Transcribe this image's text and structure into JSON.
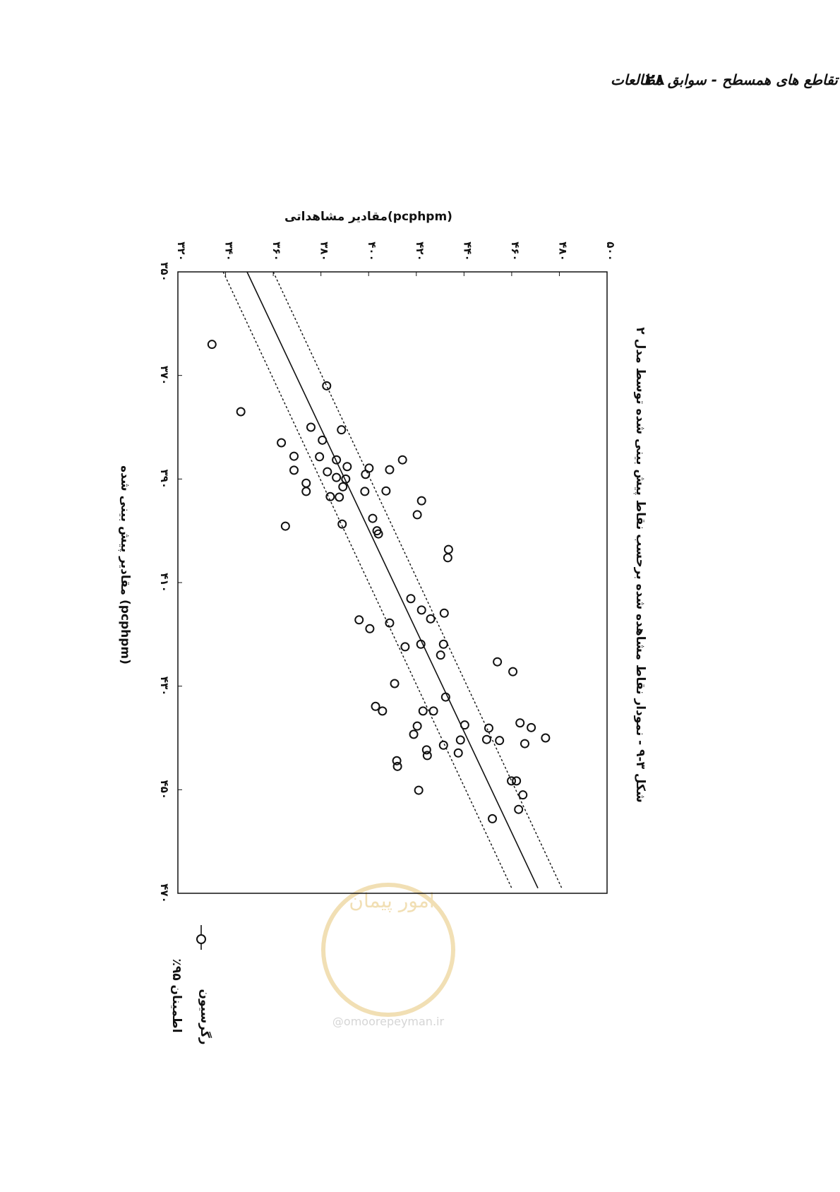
{
  "header": {
    "page_number": "۲۸",
    "title": "تقاطع های همسطح - سوابق مطالعات"
  },
  "watermark": {
    "logo_text": "امور پیمان",
    "text": "@omoorepeyman.ir"
  },
  "chart_data": {
    "type": "scatter",
    "title": "شکل ۳-۹ - نمودار نقاط مشاهده شده برحسب نقاط پیش بینی شده توسط مدل ۲",
    "x_label": "مقادیر پیش بینی شده (pcphpm)",
    "y_label": "مقادیر مشاهداتی(pcphpm)",
    "xlim": [
      350,
      470
    ],
    "xticks": [
      {
        "value": 350,
        "label": "۳۵۰"
      },
      {
        "value": 370,
        "label": "۳۷۰"
      },
      {
        "value": 390,
        "label": "۳۹۰"
      },
      {
        "value": 410,
        "label": "۴۱۰"
      },
      {
        "value": 430,
        "label": "۴۳۰"
      },
      {
        "value": 450,
        "label": "۴۵۰"
      },
      {
        "value": 470,
        "label": "۴۷۰"
      }
    ],
    "ylim": [
      320,
      500
    ],
    "yticks": [
      {
        "value": 320,
        "label": "۳۲۰"
      },
      {
        "value": 340,
        "label": "۳۴۰"
      },
      {
        "value": 360,
        "label": "۳۶۰"
      },
      {
        "value": 380,
        "label": "۳۸۰"
      },
      {
        "value": 400,
        "label": "۴۰۰"
      },
      {
        "value": 420,
        "label": "۴۲۰"
      },
      {
        "value": 440,
        "label": "۴۴۰"
      },
      {
        "value": 460,
        "label": "۴۶۰"
      },
      {
        "value": 480,
        "label": "۴۸۰"
      },
      {
        "value": 500,
        "label": "۵۰۰"
      }
    ],
    "points": {
      "color": "#111111",
      "x": [
        364,
        377,
        372,
        380,
        380.5,
        382.5,
        383,
        385.6,
        385.7,
        386.3,
        388.3,
        388.6,
        387.9,
        387.6,
        388.2,
        386.3,
        389.7,
        390,
        389.1,
        390.8,
        392.4,
        391.5,
        392.4,
        392.3,
        393.4,
        393.5,
        394.2,
        397.6,
        396.9,
        399.1,
        398.7,
        400,
        400.6,
        403.6,
        405.2,
        413.1,
        415.3,
        415.9,
        417,
        417.2,
        417.8,
        418.9,
        422.4,
        421.9,
        421.9,
        424,
        425.3,
        427.2,
        429.5,
        432.1,
        433.9,
        434.8,
        434.8,
        434.8,
        437.5,
        437.7,
        439.3,
        438.1,
        437.1,
        438,
        440.3,
        440.5,
        441.1,
        440,
        440.4,
        441.4,
        442.3,
        443.4,
        442.9,
        444.4,
        445.5,
        448.3,
        448.3,
        451,
        450.1,
        453.8,
        455.6
      ],
      "values": [
        334.3,
        346.4,
        382.4,
        375.8,
        388.6,
        380.6,
        363.4,
        368.7,
        379.4,
        386.5,
        368.7,
        382.7,
        400.2,
        391,
        408.8,
        414.2,
        386.5,
        390.4,
        398.7,
        373.8,
        373.8,
        389.2,
        398.4,
        407.3,
        383.9,
        387.7,
        422.2,
        401.7,
        420.4,
        365.1,
        388.9,
        403.5,
        404.1,
        433.5,
        433.2,
        417.7,
        422.2,
        431.7,
        426,
        396,
        408.8,
        400.5,
        415.3,
        421.9,
        431.4,
        430.2,
        454,
        460.5,
        410.9,
        432.3,
        402.9,
        405.8,
        422.8,
        427.2,
        440.3,
        420.4,
        418.9,
        450.4,
        463.5,
        468.2,
        449.5,
        454.9,
        465.5,
        474.2,
        438.5,
        431.4,
        424.3,
        424.6,
        437.6,
        411.8,
        412.1,
        459.9,
        462,
        464.7,
        421,
        462.9,
        451.9
      ]
    },
    "regression": {
      "name": "رگرسیون",
      "color": "#111111",
      "x": [
        350,
        469
      ],
      "values": [
        349,
        471
      ]
    },
    "confidence": {
      "name": "٪۹۵ اطمینان",
      "color": "#111111",
      "x": [
        350,
        469
      ],
      "lower": [
        339,
        460
      ],
      "upper": [
        360,
        481
      ]
    }
  }
}
